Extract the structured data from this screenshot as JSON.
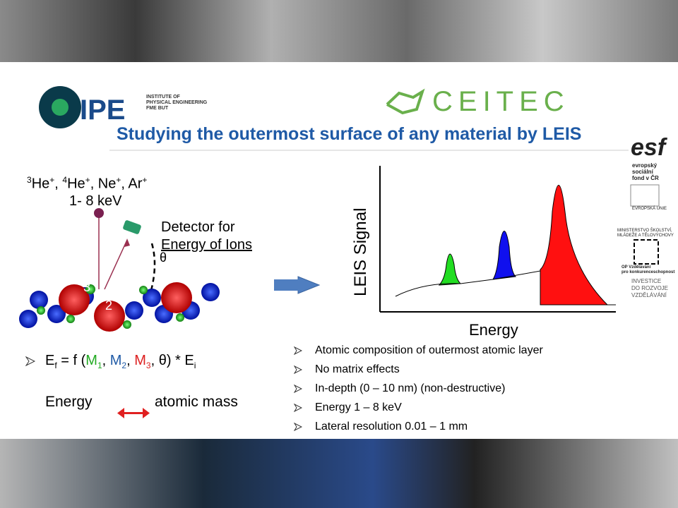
{
  "header": {
    "ipe_logo": "IPE",
    "ipe_caption": [
      "INSTITUTE OF",
      "PHYSICAL ENGINEERING",
      "FME BUT"
    ],
    "ceitec_logo": "CEITEC"
  },
  "title": "Studying the outermost surface of any material by LEIS",
  "diagram": {
    "ions": [
      "3",
      "He",
      "+",
      ", ",
      "4",
      "He",
      "+",
      ", Ne",
      "+",
      ", Ar",
      "+"
    ],
    "energy": "1- 8 keV",
    "detector": [
      "Detector for",
      "Energy of Ions"
    ],
    "angle": "θ",
    "atom_labels": [
      "3",
      "2"
    ]
  },
  "spectrum": {
    "y_label": "LEIS Signal",
    "x_label": "Energy"
  },
  "formula": [
    "E",
    "f",
    " = ",
    " f (",
    "M",
    "1",
    ", ",
    "M",
    "2",
    ", ",
    "M",
    "3",
    ", θ) * E",
    "i"
  ],
  "relation": {
    "left": "Energy",
    "right": "atomic mass"
  },
  "bullets": [
    "Atomic composition of outermost atomic layer",
    "No matrix effects",
    "In-depth (0 – 10 nm) (non-destructive)",
    "Energy 1 – 8 keV",
    "Lateral resolution 0.01 – 1 mm"
  ],
  "sidebar": {
    "esf": "esf",
    "esf_caption": [
      "evropský",
      "sociální",
      "fond v ČR"
    ],
    "eu": "EVROPSKÁ UNIE",
    "msmt": [
      "MINISTERSTVO ŠKOLSTVÍ,",
      "MLÁDEŽE A TĚLOVÝCHOVY"
    ],
    "op": [
      "OP Vzdělávání",
      "pro konkurenceschopnost"
    ],
    "investice": [
      "INVESTICE",
      "DO ROZVOJE",
      "VZDĚLÁVÁNÍ"
    ]
  }
}
